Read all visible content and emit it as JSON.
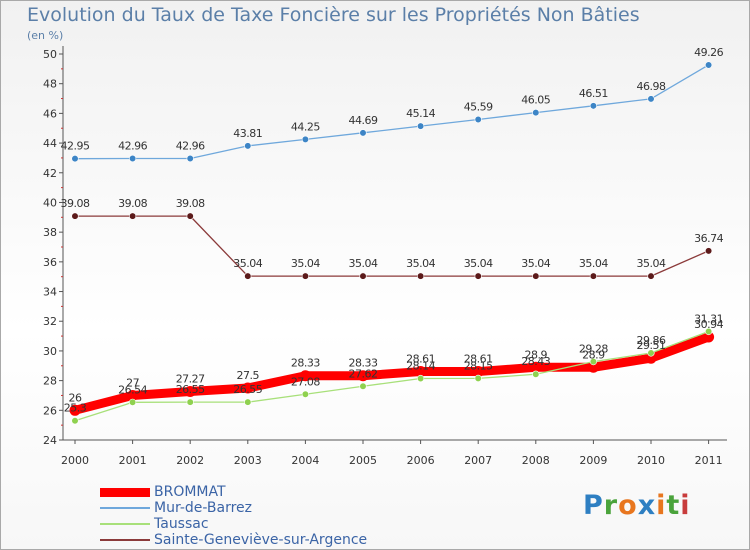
{
  "title": "Evolution du Taux de Taxe Foncière sur les Propriétés Non Bâties",
  "subtitle": "(en %)",
  "logo": {
    "text": "Proxiti",
    "colors": [
      "#2e7fc2",
      "#4aa33b",
      "#e8761e",
      "#2e7fc2",
      "#e8761e",
      "#4aa33b",
      "#c83c3c"
    ]
  },
  "chart_data": {
    "type": "line",
    "categories": [
      "2000",
      "2001",
      "2002",
      "2003",
      "2004",
      "2005",
      "2006",
      "2007",
      "2008",
      "2009",
      "2010",
      "2011"
    ],
    "ylim": [
      24,
      50
    ],
    "yticks": [
      24,
      26,
      28,
      30,
      32,
      34,
      36,
      38,
      40,
      42,
      44,
      46,
      48,
      50
    ],
    "grid": false,
    "legend_position": "bottom-left",
    "series": [
      {
        "name": "BROMMAT",
        "color": "#ff0000",
        "marker_color": "#ff0000",
        "style": "thick",
        "values": [
          26,
          27,
          27.27,
          27.5,
          28.33,
          28.33,
          28.61,
          28.61,
          28.9,
          28.9,
          29.51,
          30.94
        ],
        "labels": [
          "26",
          "27",
          "27.27",
          "27.5",
          "28.33",
          "28.33",
          "28.61",
          "28.61",
          "28.9",
          "28.9",
          "29.51",
          "30.94"
        ]
      },
      {
        "name": "Mur-de-Barrez",
        "color": "#6fa8dc",
        "marker_color": "#3d85c6",
        "style": "thin",
        "values": [
          42.95,
          42.96,
          42.96,
          43.81,
          44.25,
          44.69,
          45.14,
          45.59,
          46.05,
          46.51,
          46.98,
          49.26
        ],
        "labels": [
          "42.95",
          "42.96",
          "42.96",
          "43.81",
          "44.25",
          "44.69",
          "45.14",
          "45.59",
          "46.05",
          "46.51",
          "46.98",
          "49.26"
        ]
      },
      {
        "name": "Taussac",
        "color": "#a8e07a",
        "marker_color": "#8fd14f",
        "style": "thin",
        "values": [
          25.3,
          26.54,
          26.55,
          26.55,
          27.08,
          27.62,
          28.14,
          28.15,
          28.43,
          29.28,
          29.86,
          31.31
        ],
        "labels": [
          "25.3",
          "26.54",
          "26.55",
          "26.55",
          "27.08",
          "27.62",
          "28.14",
          "28.15",
          "28.43",
          "29.28",
          "29.86",
          "31.31"
        ]
      },
      {
        "name": "Sainte-Geneviève-sur-Argence",
        "color": "#8b3a3a",
        "marker_color": "#5c1a1a",
        "style": "thin",
        "values": [
          39.08,
          39.08,
          39.08,
          35.04,
          35.04,
          35.04,
          35.04,
          35.04,
          35.04,
          35.04,
          35.04,
          36.74
        ],
        "labels": [
          "39.08",
          "39.08",
          "39.08",
          "35.04",
          "35.04",
          "35.04",
          "35.04",
          "35.04",
          "35.04",
          "35.04",
          "35.04",
          "36.74"
        ]
      }
    ]
  }
}
